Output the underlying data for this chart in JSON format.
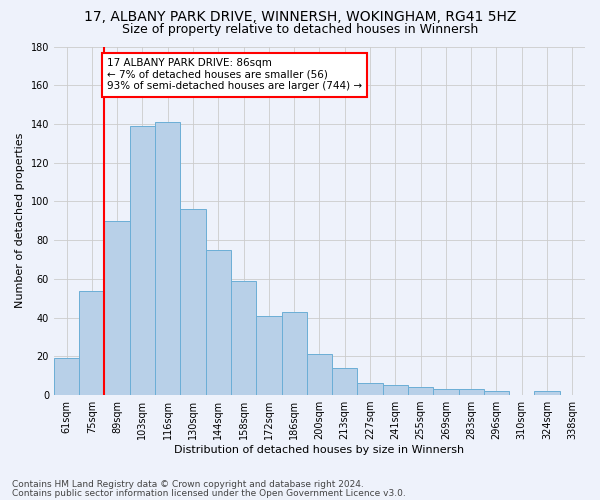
{
  "title": "17, ALBANY PARK DRIVE, WINNERSH, WOKINGHAM, RG41 5HZ",
  "subtitle": "Size of property relative to detached houses in Winnersh",
  "xlabel": "Distribution of detached houses by size in Winnersh",
  "ylabel": "Number of detached properties",
  "categories": [
    "61sqm",
    "75sqm",
    "89sqm",
    "103sqm",
    "116sqm",
    "130sqm",
    "144sqm",
    "158sqm",
    "172sqm",
    "186sqm",
    "200sqm",
    "213sqm",
    "227sqm",
    "241sqm",
    "255sqm",
    "269sqm",
    "283sqm",
    "296sqm",
    "310sqm",
    "324sqm",
    "338sqm"
  ],
  "values": [
    19,
    54,
    90,
    139,
    141,
    96,
    75,
    59,
    41,
    43,
    21,
    14,
    6,
    5,
    4,
    3,
    3,
    2,
    0,
    2,
    0
  ],
  "bar_color": "#b8d0e8",
  "bar_edge_color": "#6baed6",
  "bar_width": 1.0,
  "vline_color": "red",
  "annotation_text": "17 ALBANY PARK DRIVE: 86sqm\n← 7% of detached houses are smaller (56)\n93% of semi-detached houses are larger (744) →",
  "annotation_box_color": "white",
  "annotation_box_edge": "red",
  "ylim": [
    0,
    180
  ],
  "yticks": [
    0,
    20,
    40,
    60,
    80,
    100,
    120,
    140,
    160,
    180
  ],
  "footer1": "Contains HM Land Registry data © Crown copyright and database right 2024.",
  "footer2": "Contains public sector information licensed under the Open Government Licence v3.0.",
  "bg_color": "#eef2fb",
  "axes_bg_color": "#eef2fb",
  "grid_color": "#cccccc",
  "title_fontsize": 10,
  "subtitle_fontsize": 9,
  "label_fontsize": 8,
  "tick_fontsize": 7,
  "footer_fontsize": 6.5,
  "annot_fontsize": 7.5
}
